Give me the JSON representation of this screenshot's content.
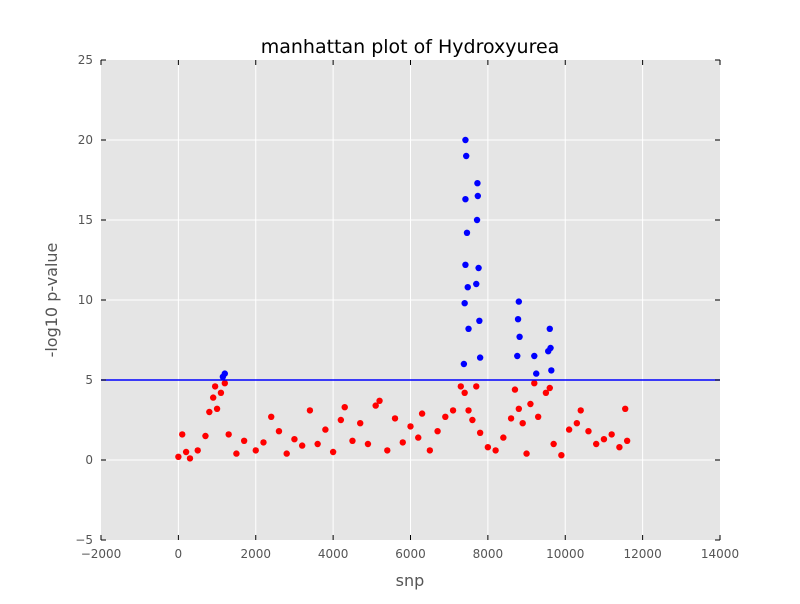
{
  "chart_data": {
    "type": "scatter",
    "title": "manhattan plot of Hydroxyurea",
    "xlabel": "snp",
    "ylabel": "-log10 p-value",
    "xlim": [
      -2000,
      14000
    ],
    "ylim": [
      -5,
      25
    ],
    "xticks": [
      -2000,
      0,
      2000,
      4000,
      6000,
      8000,
      10000,
      12000,
      14000
    ],
    "yticks": [
      -5,
      0,
      5,
      10,
      15,
      20,
      25
    ],
    "grid": true,
    "threshold": {
      "y": 5,
      "color": "#0000ff"
    },
    "colors": {
      "below": "#ff0000",
      "above": "#0000ff",
      "background": "#e5e5e5",
      "grid": "#ffffff"
    },
    "marker": "circle",
    "series": [
      {
        "points_below_threshold": [
          [
            0,
            0.2
          ],
          [
            100,
            1.6
          ],
          [
            200,
            0.5
          ],
          [
            300,
            0.1
          ],
          [
            500,
            0.6
          ],
          [
            700,
            1.5
          ],
          [
            800,
            3.0
          ],
          [
            900,
            3.9
          ],
          [
            950,
            4.6
          ],
          [
            1000,
            3.2
          ],
          [
            1100,
            4.2
          ],
          [
            1200,
            4.8
          ],
          [
            1300,
            1.6
          ],
          [
            1500,
            0.4
          ],
          [
            1700,
            1.2
          ],
          [
            2000,
            0.6
          ],
          [
            2200,
            1.1
          ],
          [
            2400,
            2.7
          ],
          [
            2600,
            1.8
          ],
          [
            2800,
            0.4
          ],
          [
            3000,
            1.3
          ],
          [
            3200,
            0.9
          ],
          [
            3400,
            3.1
          ],
          [
            3600,
            1.0
          ],
          [
            3800,
            1.9
          ],
          [
            4000,
            0.5
          ],
          [
            4200,
            2.5
          ],
          [
            4300,
            3.3
          ],
          [
            4500,
            1.2
          ],
          [
            4700,
            2.3
          ],
          [
            4900,
            1.0
          ],
          [
            5100,
            3.4
          ],
          [
            5200,
            3.7
          ],
          [
            5400,
            0.6
          ],
          [
            5600,
            2.6
          ],
          [
            5800,
            1.1
          ],
          [
            6000,
            2.1
          ],
          [
            6200,
            1.4
          ],
          [
            6300,
            2.9
          ],
          [
            6500,
            0.6
          ],
          [
            6700,
            1.8
          ],
          [
            6900,
            2.7
          ],
          [
            7100,
            3.1
          ],
          [
            7300,
            4.6
          ],
          [
            7400,
            4.2
          ],
          [
            7500,
            3.1
          ],
          [
            7600,
            2.5
          ],
          [
            7700,
            4.6
          ],
          [
            7800,
            1.7
          ],
          [
            8000,
            0.8
          ],
          [
            8200,
            0.6
          ],
          [
            8400,
            1.4
          ],
          [
            8600,
            2.6
          ],
          [
            8700,
            4.4
          ],
          [
            8800,
            3.2
          ],
          [
            8900,
            2.3
          ],
          [
            9000,
            0.4
          ],
          [
            9100,
            3.5
          ],
          [
            9200,
            4.8
          ],
          [
            9300,
            2.7
          ],
          [
            9500,
            4.2
          ],
          [
            9600,
            4.5
          ],
          [
            9700,
            1.0
          ],
          [
            9900,
            0.3
          ],
          [
            10100,
            1.9
          ],
          [
            10300,
            2.3
          ],
          [
            10400,
            3.1
          ],
          [
            10600,
            1.8
          ],
          [
            10800,
            1.0
          ],
          [
            11000,
            1.3
          ],
          [
            11200,
            1.6
          ],
          [
            11400,
            0.8
          ],
          [
            11550,
            3.2
          ],
          [
            11600,
            1.2
          ]
        ]
      },
      {
        "points_above_threshold": [
          [
            1150,
            5.2
          ],
          [
            1200,
            5.4
          ],
          [
            7380,
            6.0
          ],
          [
            7400,
            9.8
          ],
          [
            7420,
            12.2
          ],
          [
            7420,
            16.3
          ],
          [
            7420,
            20.0
          ],
          [
            7440,
            19.0
          ],
          [
            7460,
            14.2
          ],
          [
            7480,
            10.8
          ],
          [
            7500,
            8.2
          ],
          [
            7700,
            11.0
          ],
          [
            7720,
            15.0
          ],
          [
            7730,
            17.3
          ],
          [
            7740,
            16.5
          ],
          [
            7760,
            12.0
          ],
          [
            7780,
            8.7
          ],
          [
            7800,
            6.4
          ],
          [
            8760,
            6.5
          ],
          [
            8780,
            8.8
          ],
          [
            8800,
            9.9
          ],
          [
            8820,
            7.7
          ],
          [
            9200,
            6.5
          ],
          [
            9250,
            5.4
          ],
          [
            9560,
            6.8
          ],
          [
            9600,
            8.2
          ],
          [
            9620,
            7.0
          ],
          [
            9640,
            5.6
          ]
        ]
      }
    ]
  }
}
